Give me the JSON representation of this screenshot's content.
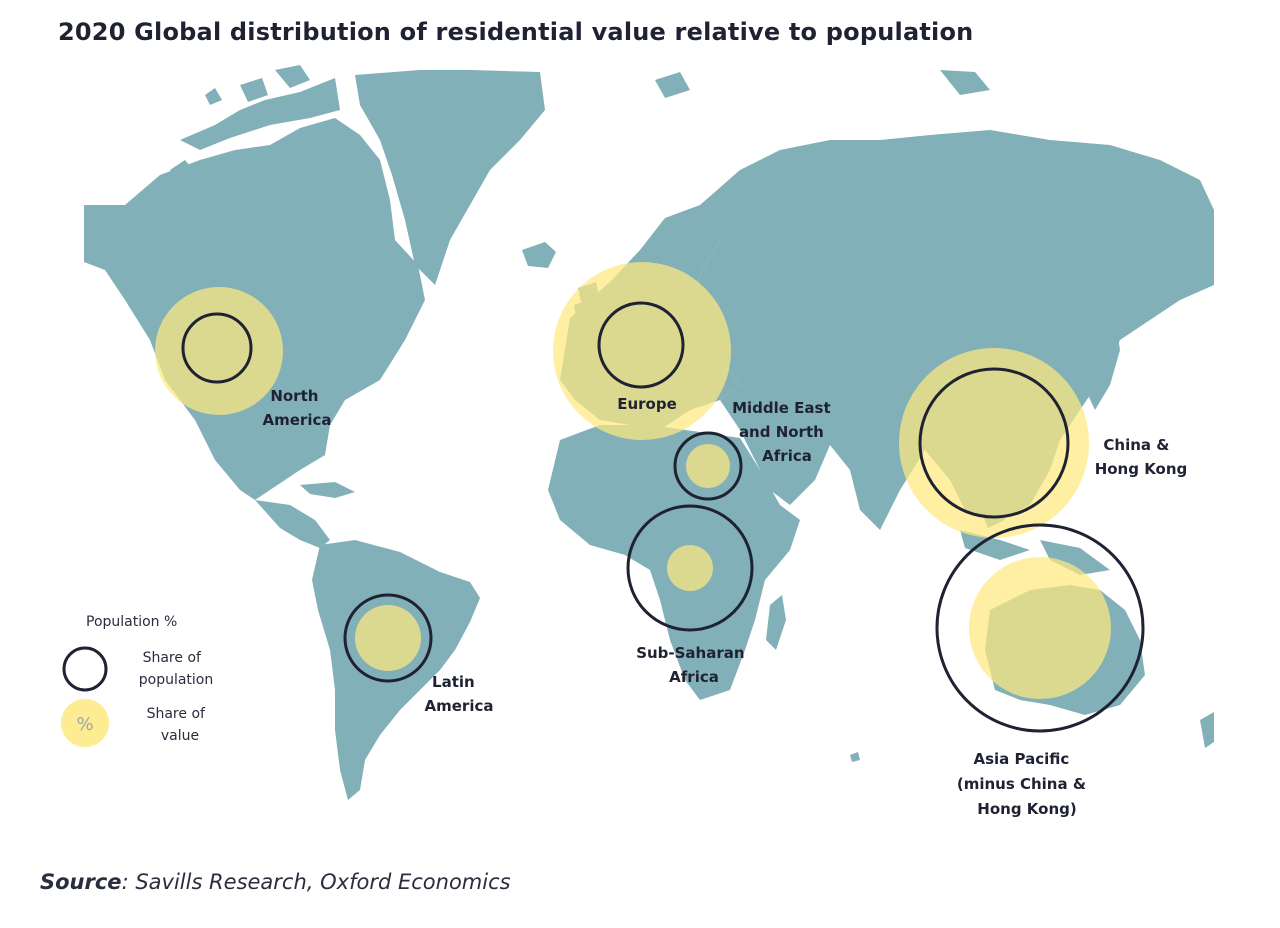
{
  "title": "2020 Global distribution of residential value relative to population",
  "colors": {
    "land": "#82b0b8",
    "value_circle": "#fde97f",
    "population_ring": "#1f2233"
  },
  "regions": [
    {
      "id": "north-america",
      "label_lines": [
        "North",
        "America"
      ]
    },
    {
      "id": "europe",
      "label_lines": [
        "Europe"
      ]
    },
    {
      "id": "middle-east-north-africa",
      "label_lines": [
        "Middle East",
        "and North",
        "Africa"
      ]
    },
    {
      "id": "china-hong-kong",
      "label_lines": [
        "China &",
        "Hong Kong"
      ]
    },
    {
      "id": "sub-saharan-africa",
      "label_lines": [
        "Sub-Saharan",
        "Africa"
      ]
    },
    {
      "id": "latin-america",
      "label_lines": [
        "Latin",
        "America"
      ]
    },
    {
      "id": "asia-pacific",
      "label_lines": [
        "Asia Pacific",
        "(minus China &",
        "Hong Kong)"
      ]
    }
  ],
  "legend": {
    "title": "Population %",
    "population_lines": [
      "Share of",
      "population"
    ],
    "value_symbol": "%",
    "value_lines": [
      "Share of",
      "value"
    ]
  },
  "source": {
    "label": "Source",
    "text": ": Savills Research, Oxford Economics"
  }
}
